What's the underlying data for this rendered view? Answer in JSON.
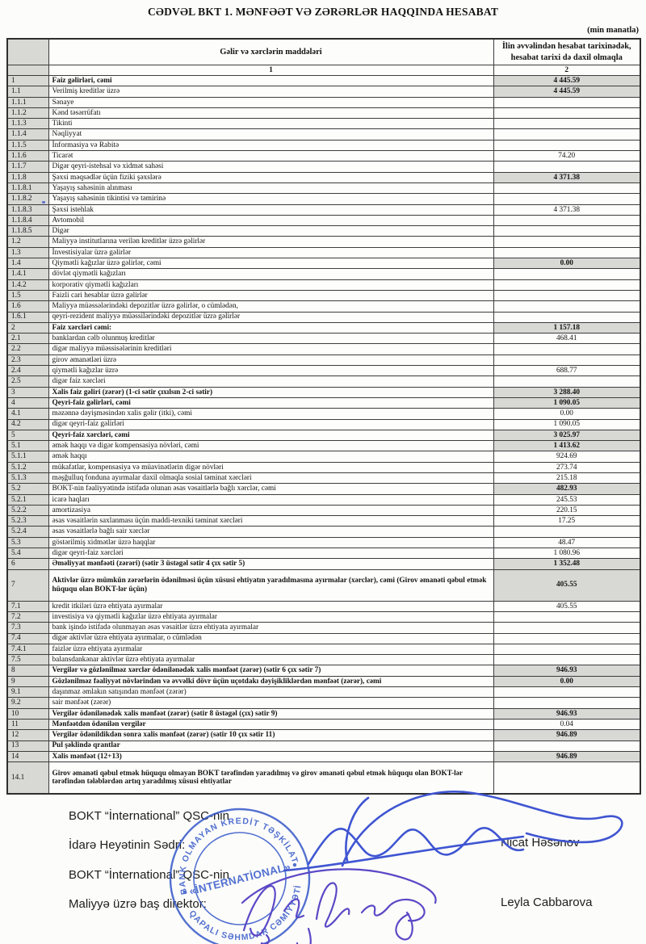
{
  "title": "CƏDVƏL BKT 1. MƏNFƏƏT VƏ ZƏRƏRLƏR HAQQINDA HESABAT",
  "unit_note": "(min manatla)",
  "table": {
    "header": {
      "items_col": "Gəlir və xərclərin maddələri",
      "value_col": "İlin əvvəlindən hesabat tarixinədək, hesabat tarixi də daxil olmaqla",
      "items_col_num": "1",
      "value_col_num": "2"
    },
    "rows": [
      {
        "num": "1",
        "label": "Faiz gəlirləri, cəmi",
        "value": "4 445.59",
        "bold": true,
        "shaded": true
      },
      {
        "num": "1.1",
        "label": "Verilmiş kreditlər üzrə",
        "value": "4 445.59",
        "shaded": true
      },
      {
        "num": "1.1.1",
        "label": "Sənaye",
        "value": ""
      },
      {
        "num": "1.1.2",
        "label": "Kənd təsərrüfatı",
        "value": ""
      },
      {
        "num": "1.1.3",
        "label": "Tikinti",
        "value": ""
      },
      {
        "num": "1.1.4",
        "label": "Nəqliyyat",
        "value": ""
      },
      {
        "num": "1.1.5",
        "label": "İnformasiya və Rabitə",
        "value": ""
      },
      {
        "num": "1.1.6",
        "label": "Ticarət",
        "value": "74.20"
      },
      {
        "num": "1.1.7",
        "label": "Digər qeyri-istehsal və xidmət sahəsi",
        "value": ""
      },
      {
        "num": "1.1.8",
        "label": "Şəxsi məqsədlər üçün fiziki şəxslərə",
        "value": "4 371.38",
        "shaded": true
      },
      {
        "num": "1.1.8.1",
        "label": "Yaşayış sahəsinin alınması",
        "value": ""
      },
      {
        "num": "1.1.8.2",
        "label": "Yaşayış sahəsinin tikintisi və təmirinə",
        "value": ""
      },
      {
        "num": "1.1.8.3",
        "label": "Şəxsi istehlak",
        "value": "4 371.38"
      },
      {
        "num": "1.1.8.4",
        "label": "Avtomobil",
        "value": ""
      },
      {
        "num": "1.1.8.5",
        "label": "Digər",
        "value": ""
      },
      {
        "num": "1.2",
        "label": "Maliyyə institutlarına verilən kreditlər üzrə gəlirlər",
        "value": ""
      },
      {
        "num": "1.3",
        "label": "İnvestisiyalar üzrə gəlirlər",
        "value": ""
      },
      {
        "num": "1.4",
        "label": "Qiymətli kağızlar üzrə gəlirlər, cəmi",
        "value": "0.00",
        "shaded": true
      },
      {
        "num": "1.4.1",
        "label": "dövlət qiymətli kağızları",
        "value": ""
      },
      {
        "num": "1.4.2",
        "label": "korporativ qiymətli kağızları",
        "value": ""
      },
      {
        "num": "1.5",
        "label": "Faizli cari hesablar üzrə gəlirlər",
        "value": ""
      },
      {
        "num": "1.6",
        "label": "Maliyyə müəssələrindəki depozitlər üzrə gəlirlər, o cümlədən,",
        "value": ""
      },
      {
        "num": "1.6.1",
        "label": "qeyri-rezident maliyyə müəssilərindəki depozitlər üzrə gəlirlər",
        "value": ""
      },
      {
        "num": "2",
        "label": "Faiz xərcləri cəmi:",
        "value": "1 157.18",
        "bold": true,
        "shaded": true
      },
      {
        "num": "2.1",
        "label": "banklardan cəlb olunmuş kreditlər",
        "value": "468.41"
      },
      {
        "num": "2.2",
        "label": "digər maliyyə müəssisələrinin kreditləri",
        "value": ""
      },
      {
        "num": "2.3",
        "label": "girov əmanətləri üzrə",
        "value": ""
      },
      {
        "num": "2.4",
        "label": "qiymətli kağızlar üzrə",
        "value": "688.77"
      },
      {
        "num": "2.5",
        "label": "digər faiz xərcləri",
        "value": ""
      },
      {
        "num": "3",
        "label": "Xalis faiz gəliri (zərər) (1-ci sətir çıxılsın 2-ci sətir)",
        "value": "3 288.40",
        "bold": true,
        "shaded": true
      },
      {
        "num": "4",
        "label": "Qeyri-faiz gəlirləri, cəmi",
        "value": "1 090.05",
        "bold": true,
        "shaded": true
      },
      {
        "num": "4.1",
        "label": "məzənnə dəyişməsindən xalis gəlir (itki), cəmi",
        "value": "0.00"
      },
      {
        "num": "4.2",
        "label": "digər qeyri-faiz gəlirləri",
        "value": "1 090.05"
      },
      {
        "num": "5",
        "label": "Qeyri-faiz xərcləri, cəmi",
        "value": "3 025.97",
        "bold": true,
        "shaded": true
      },
      {
        "num": "5.1",
        "label": "əmək haqqı və digər kompensasiya növləri, cəmi",
        "value": "1 413.62",
        "shaded": true
      },
      {
        "num": "5.1.1",
        "label": "əmək haqqı",
        "value": "924.69"
      },
      {
        "num": "5.1.2",
        "label": "mükafatlar, kompensasiya və müavinətlərin digər növləri",
        "value": "273.74"
      },
      {
        "num": "5.1.3",
        "label": "məşğulluq fonduna ayırmalar daxil olmaqla sosial təminat xərcləri",
        "value": "215.18"
      },
      {
        "num": "5.2",
        "label": "BOKT-nin fəaliyyətində istifadə olunan əsas vəsaitlərlə bağlı xərclər, cəmi",
        "value": "482.93",
        "shaded": true
      },
      {
        "num": "5.2.1",
        "label": "icarə haqları",
        "value": "245.53"
      },
      {
        "num": "5.2.2",
        "label": "amortizasiya",
        "value": "220.15"
      },
      {
        "num": "5.2.3",
        "label": "əsas vəsaitlərin saxlanması üçün maddi-texniki təminat xərcləri",
        "value": "17.25"
      },
      {
        "num": "5.2.4",
        "label": "əsas vəsaitlərlə bağlı sair xərclər",
        "value": ""
      },
      {
        "num": "5.3",
        "label": "göstərilmiş xidmətlər üzrə haqqlar",
        "value": "48.47"
      },
      {
        "num": "5.4",
        "label": "digər qeyri-faiz xərcləri",
        "value": "1 080.96"
      },
      {
        "num": "6",
        "label": "Əməliyyat mənfəəti (zərəri) (sətir 3 üstəgəl sətir 4 çıx sətir 5)",
        "value": "1 352.48",
        "bold": true,
        "shaded": true
      },
      {
        "num": "7",
        "label": "Aktivlər üzrə mümkün zərərlərin ödənilməsi üçün xüsusi ehtiyatın yaradılmasına ayırmalar (xərclər), cəmi (Girov əmanəti qəbul etmək hüququ olan BOKT-lər üçün)",
        "value": "405.55",
        "bold": true,
        "shaded": true,
        "tall": true
      },
      {
        "num": "7.1",
        "label": "kredit itkiləri üzrə ehtiyata ayırmalar",
        "value": "405.55"
      },
      {
        "num": "7.2",
        "label": "investisiya və qiymətli kağızlar üzrə ehtiyata ayırmalar",
        "value": ""
      },
      {
        "num": "7.3",
        "label": "bank işində istifadə olunmayan əsas vəsaitlər üzrə ehtiyata ayırmalar",
        "value": ""
      },
      {
        "num": "7.4",
        "label": "digər aktivlər üzrə ehtiyata ayırmalar, o cümlədən",
        "value": ""
      },
      {
        "num": "7.4.1",
        "label": "faizlər üzrə ehtiyata ayırmalar",
        "value": ""
      },
      {
        "num": "7.5",
        "label": "balansdankənar aktivlər üzrə ehtiyata ayırmalar",
        "value": ""
      },
      {
        "num": "8",
        "label": "Vergilər və gözlənilməz xərclər ödənilənədək xalis mənfəət (zərər) (sətir 6 çıx sətir 7)",
        "value": "946.93",
        "bold": true,
        "shaded": true
      },
      {
        "num": "9",
        "label": "Gözlənilməz fəaliyyət növlərindən və əvvəlki dövr üçün uçotdakı dəyişikliklərdən mənfəət (zərər), cəmi",
        "value": "0.00",
        "bold": true,
        "shaded": true
      },
      {
        "num": "9.1",
        "label": "daşınmaz əmlakın satışından mənfəət (zərər)",
        "value": ""
      },
      {
        "num": "9.2",
        "label": "sair mənfəət (zərər)",
        "value": ""
      },
      {
        "num": "10",
        "label": "Vergilər ödənilənədək xalis mənfəət (zərər) (sətir 8 üstəgəl (çıx) sətir 9)",
        "value": "946.93",
        "bold": true,
        "shaded": true
      },
      {
        "num": "11",
        "label": "Mənfəətdən ödənilən vergilər",
        "value": "0.04",
        "bold": true
      },
      {
        "num": "12",
        "label": "Vergilər ödənildikdən sonra xalis mənfəət (zərər) (sətir 10 çıx sətir 11)",
        "value": "946.89",
        "bold": true,
        "shaded": true
      },
      {
        "num": "13",
        "label": "Pul şəklində qrantlar",
        "value": "",
        "bold": true
      },
      {
        "num": "14",
        "label": "Xalis mənfəət  (12+13)",
        "value": "946.89",
        "bold": true,
        "shaded": true
      },
      {
        "num": "14.1",
        "label": "Girov əmanəti qəbul etmək hüququ olmayan BOKT tərəfindən yaradılmış və girov əmanəti qəbul etmək hüququ olan BOKT-lər tərəfindən tələblərdən artıq yaradılmış xüsusi ehtiyatlar",
        "value": "",
        "bold": true,
        "tall": true
      }
    ]
  },
  "footer": {
    "org_line_1": "BOKT “İnternational” QSC-nin",
    "role_1": "İdarə Heyətinin Sədri:",
    "name_1": "Nicat Həsənov",
    "org_line_2": "BOKT “İnternational” QSC-nin",
    "role_2": "Maliyyə üzrə baş direktor:",
    "name_2": "Leyla Cabbarova"
  },
  "stamp": {
    "ring_top_text": "BANK OLMAYAN KREDİT TƏŞKİLATI",
    "ring_bottom_text": "QAPALI SƏHMDAR CƏMİYYƏTİ",
    "center_text": "«İNTERNATİONAL»"
  },
  "colors": {
    "shade_gray": "#d8d8d5",
    "stamp_blue": "#2d52c8",
    "signature_blue": "#3f55d2",
    "signature_violet": "#5a48c6",
    "ink": "#141414"
  }
}
